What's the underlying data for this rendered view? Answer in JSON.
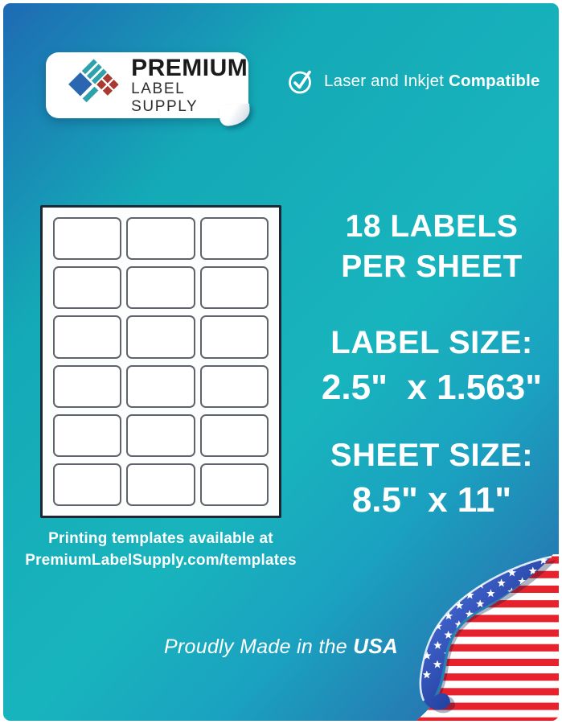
{
  "brand": {
    "line1": "PREMIUM",
    "line2": "LABEL SUPPLY"
  },
  "compatibility": {
    "regular": "Laser and Inkjet ",
    "bold": "Compatible"
  },
  "sheet": {
    "rows": 6,
    "cols": 3,
    "label_count": 18
  },
  "specs": {
    "count_line1": "18 LABELS",
    "count_line2": "PER SHEET",
    "label_size_heading": "LABEL SIZE:",
    "label_size_value": "2.5\"  x 1.563\"",
    "sheet_size_heading": "SHEET SIZE:",
    "sheet_size_value": "8.5\" x 11\""
  },
  "templates_note": {
    "line1": "Printing templates available at",
    "line2": "PremiumLabelSupply.com/templates"
  },
  "footer": {
    "regular": "Proudly Made in the ",
    "bold": "USA"
  },
  "icons": {
    "check": "check-circle-icon",
    "logo": "brand-diamond-logo-icon",
    "flag": "usa-flag-page-curl-icon"
  },
  "colors": {
    "background_blue": "#1e6ab4",
    "background_teal": "#18b4bd",
    "background_deep_blue": "#2e5ea9",
    "logo_blue": "#2b67b1",
    "logo_teal": "#2da2aa",
    "logo_red": "#a83a31",
    "flag_red": "#e8222c",
    "flag_blue": "#203d9b",
    "sheet_border": "#1d2834",
    "label_border": "#60646a",
    "text": "#ffffff"
  }
}
